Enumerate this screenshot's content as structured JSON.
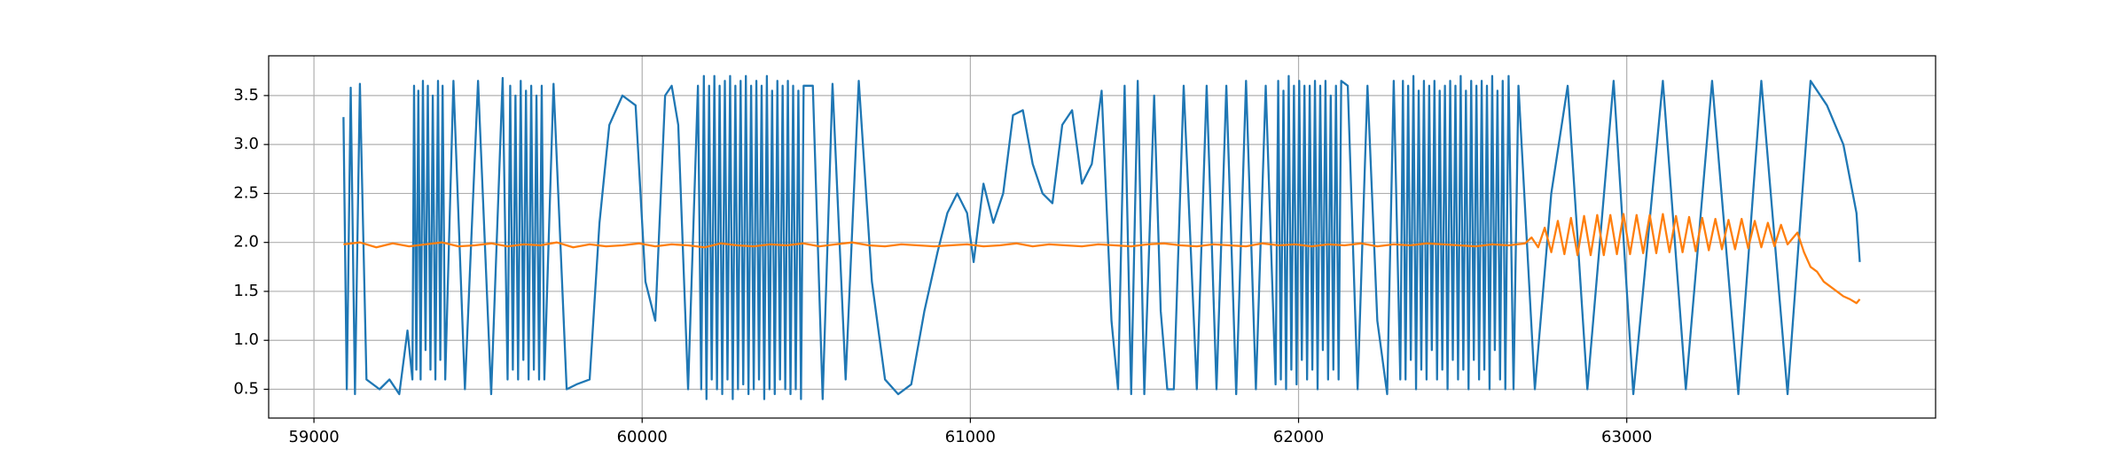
{
  "chart_data": {
    "type": "line",
    "xlim": [
      58862,
      63941
    ],
    "ylim": [
      0.206,
      3.906
    ],
    "xticks": [
      59000,
      60000,
      61000,
      62000,
      63000
    ],
    "yticks": [
      0.5,
      {
        "value": 1.0,
        "label": "1.0"
      },
      1.5,
      {
        "value": 2.0,
        "label": "2.0"
      },
      2.5,
      {
        "value": 3.0,
        "label": "3.0"
      },
      3.5
    ],
    "grid": true,
    "series": [
      {
        "color": "#1f77b4",
        "x": [
          59090,
          59100,
          59112,
          59125,
          59140,
          59160,
          59200,
          59230,
          59260,
          59285,
          59300,
          59305,
          59312,
          59318,
          59325,
          59332,
          59340,
          59347,
          59355,
          59362,
          59370,
          59378,
          59385,
          59392,
          59400,
          59425,
          59460,
          59500,
          59540,
          59575,
          59590,
          59598,
          59606,
          59614,
          59622,
          59630,
          59638,
          59646,
          59654,
          59662,
          59670,
          59678,
          59686,
          59694,
          59702,
          59730,
          59770,
          59800,
          59840,
          59870,
          59900,
          59940,
          59980,
          60010,
          60040,
          60070,
          60090,
          60110,
          60140,
          60170,
          60180,
          60188,
          60196,
          60204,
          60212,
          60220,
          60228,
          60236,
          60244,
          60252,
          60260,
          60268,
          60276,
          60284,
          60292,
          60300,
          60308,
          60316,
          60324,
          60332,
          60340,
          60348,
          60356,
          60364,
          60372,
          60380,
          60388,
          60396,
          60404,
          60412,
          60420,
          60428,
          60436,
          60444,
          60452,
          60460,
          60468,
          60476,
          60484,
          60492,
          60520,
          60550,
          60580,
          60620,
          60660,
          60700,
          60740,
          60780,
          60820,
          60860,
          60900,
          60930,
          60960,
          60990,
          61010,
          61040,
          61070,
          61100,
          61130,
          61160,
          61190,
          61220,
          61250,
          61280,
          61310,
          61340,
          61370,
          61400,
          61430,
          61450,
          61470,
          61490,
          61510,
          61530,
          61560,
          61580,
          61600,
          61620,
          61650,
          61690,
          61720,
          61750,
          61780,
          61810,
          61840,
          61870,
          61900,
          61930,
          61938,
          61946,
          61954,
          61962,
          61970,
          61978,
          61986,
          61994,
          62002,
          62010,
          62018,
          62026,
          62034,
          62042,
          62050,
          62058,
          62066,
          62074,
          62082,
          62090,
          62098,
          62106,
          62114,
          62122,
          62130,
          62150,
          62180,
          62210,
          62240,
          62270,
          62290,
          62310,
          62318,
          62326,
          62334,
          62342,
          62350,
          62358,
          62366,
          62374,
          62382,
          62390,
          62398,
          62406,
          62414,
          62422,
          62430,
          62438,
          62446,
          62454,
          62462,
          62470,
          62478,
          62486,
          62494,
          62502,
          62510,
          62518,
          62526,
          62534,
          62542,
          62550,
          62558,
          62566,
          62574,
          62582,
          62590,
          62598,
          62606,
          62614,
          62622,
          62630,
          62640,
          62655,
          62670,
          62720,
          62770,
          62820,
          62880,
          62960,
          63020,
          63110,
          63180,
          63260,
          63340,
          63410,
          63490,
          63560,
          63610,
          63660,
          63700,
          63710
        ],
        "values": [
          3.28,
          0.5,
          3.58,
          0.45,
          3.62,
          0.6,
          0.5,
          0.6,
          0.45,
          1.1,
          0.6,
          3.6,
          0.7,
          3.55,
          0.6,
          3.65,
          0.9,
          3.6,
          0.7,
          3.5,
          0.6,
          3.65,
          0.8,
          3.6,
          0.6,
          3.65,
          0.5,
          3.65,
          0.45,
          3.68,
          0.6,
          3.6,
          0.7,
          3.5,
          0.6,
          3.65,
          0.8,
          3.55,
          0.6,
          3.6,
          0.7,
          3.5,
          0.6,
          3.6,
          0.6,
          3.62,
          0.5,
          0.55,
          0.6,
          2.2,
          3.2,
          3.5,
          3.4,
          1.6,
          1.2,
          3.5,
          3.6,
          3.2,
          0.5,
          3.6,
          0.5,
          3.7,
          0.4,
          3.6,
          0.6,
          3.7,
          0.5,
          3.6,
          0.45,
          3.65,
          0.6,
          3.7,
          0.4,
          3.6,
          0.5,
          3.65,
          0.55,
          3.7,
          0.45,
          3.6,
          0.5,
          3.65,
          0.6,
          3.6,
          0.4,
          3.7,
          0.5,
          3.55,
          0.45,
          3.65,
          0.6,
          3.6,
          0.5,
          3.65,
          0.45,
          3.6,
          0.5,
          3.55,
          0.4,
          3.6,
          3.6,
          0.4,
          3.62,
          0.6,
          3.65,
          1.6,
          0.6,
          0.45,
          0.55,
          1.3,
          1.9,
          2.3,
          2.5,
          2.3,
          1.8,
          2.6,
          2.2,
          2.5,
          3.3,
          3.35,
          2.8,
          2.5,
          2.4,
          3.2,
          3.35,
          2.6,
          2.8,
          3.55,
          1.2,
          0.5,
          3.6,
          0.45,
          3.65,
          0.45,
          3.5,
          1.3,
          0.5,
          0.5,
          3.6,
          0.5,
          3.6,
          0.5,
          3.6,
          0.45,
          3.65,
          0.5,
          3.6,
          0.55,
          3.65,
          0.6,
          3.55,
          0.5,
          3.7,
          0.7,
          3.6,
          0.55,
          3.65,
          0.8,
          3.6,
          0.6,
          3.6,
          0.7,
          3.65,
          0.5,
          3.6,
          0.9,
          3.65,
          0.6,
          3.5,
          0.7,
          3.6,
          0.6,
          3.65,
          3.6,
          0.5,
          3.6,
          1.2,
          0.45,
          3.65,
          0.6,
          3.65,
          0.6,
          3.6,
          0.8,
          3.7,
          0.5,
          3.55,
          0.7,
          3.65,
          0.6,
          3.6,
          0.9,
          3.65,
          0.6,
          3.55,
          0.7,
          3.6,
          0.5,
          3.65,
          0.8,
          3.6,
          0.6,
          3.7,
          0.7,
          3.55,
          0.5,
          3.65,
          0.8,
          3.6,
          0.6,
          3.65,
          0.7,
          3.6,
          0.5,
          3.7,
          0.9,
          3.55,
          0.6,
          3.65,
          0.5,
          3.7,
          0.5,
          3.6,
          0.5,
          2.5,
          3.6,
          0.5,
          3.65,
          0.45,
          3.65,
          0.5,
          3.65,
          0.45,
          3.65,
          0.45,
          3.65,
          3.4,
          3.0,
          2.3,
          1.8
        ]
      },
      {
        "color": "#ff7f0e",
        "x": [
          59090,
          59140,
          59190,
          59240,
          59290,
          59340,
          59390,
          59440,
          59490,
          59540,
          59590,
          59640,
          59690,
          59740,
          59790,
          59840,
          59890,
          59940,
          59990,
          60040,
          60090,
          60140,
          60190,
          60240,
          60290,
          60340,
          60390,
          60440,
          60490,
          60540,
          60590,
          60640,
          60690,
          60740,
          60790,
          60840,
          60890,
          60940,
          60990,
          61040,
          61090,
          61140,
          61190,
          61240,
          61290,
          61340,
          61390,
          61440,
          61490,
          61540,
          61590,
          61640,
          61690,
          61740,
          61790,
          61840,
          61890,
          61940,
          61990,
          62040,
          62090,
          62140,
          62190,
          62240,
          62290,
          62340,
          62390,
          62440,
          62490,
          62540,
          62590,
          62640,
          62690,
          62710,
          62730,
          62750,
          62770,
          62790,
          62810,
          62830,
          62850,
          62870,
          62890,
          62910,
          62930,
          62950,
          62970,
          62990,
          63010,
          63030,
          63050,
          63070,
          63090,
          63110,
          63130,
          63150,
          63170,
          63190,
          63210,
          63230,
          63250,
          63270,
          63290,
          63310,
          63330,
          63350,
          63370,
          63390,
          63410,
          63430,
          63450,
          63470,
          63490,
          63520,
          63540,
          63560,
          63580,
          63600,
          63620,
          63640,
          63660,
          63680,
          63700,
          63710
        ],
        "values": [
          1.98,
          2.0,
          1.95,
          1.99,
          1.96,
          1.98,
          2.0,
          1.96,
          1.97,
          1.99,
          1.96,
          1.98,
          1.97,
          2.0,
          1.95,
          1.98,
          1.96,
          1.97,
          1.99,
          1.96,
          1.98,
          1.97,
          1.95,
          1.99,
          1.97,
          1.96,
          1.98,
          1.97,
          1.99,
          1.96,
          1.98,
          2.0,
          1.97,
          1.96,
          1.98,
          1.97,
          1.96,
          1.97,
          1.98,
          1.96,
          1.97,
          1.99,
          1.96,
          1.98,
          1.97,
          1.96,
          1.98,
          1.97,
          1.96,
          1.98,
          1.99,
          1.97,
          1.96,
          1.98,
          1.97,
          1.96,
          1.99,
          1.97,
          1.98,
          1.96,
          1.98,
          1.97,
          1.99,
          1.96,
          1.98,
          1.97,
          1.99,
          1.98,
          1.97,
          1.96,
          1.98,
          1.97,
          1.99,
          2.05,
          1.95,
          2.15,
          1.9,
          2.22,
          1.88,
          2.25,
          1.87,
          2.27,
          1.87,
          2.28,
          1.87,
          2.28,
          1.88,
          2.29,
          1.88,
          2.28,
          1.89,
          2.28,
          1.89,
          2.29,
          1.9,
          2.27,
          1.9,
          2.26,
          1.91,
          2.25,
          1.92,
          2.24,
          1.93,
          2.23,
          1.93,
          2.24,
          1.94,
          2.22,
          1.95,
          2.2,
          1.96,
          2.18,
          1.98,
          2.1,
          1.9,
          1.75,
          1.7,
          1.6,
          1.55,
          1.5,
          1.45,
          1.42,
          1.38,
          1.42
        ]
      }
    ]
  }
}
